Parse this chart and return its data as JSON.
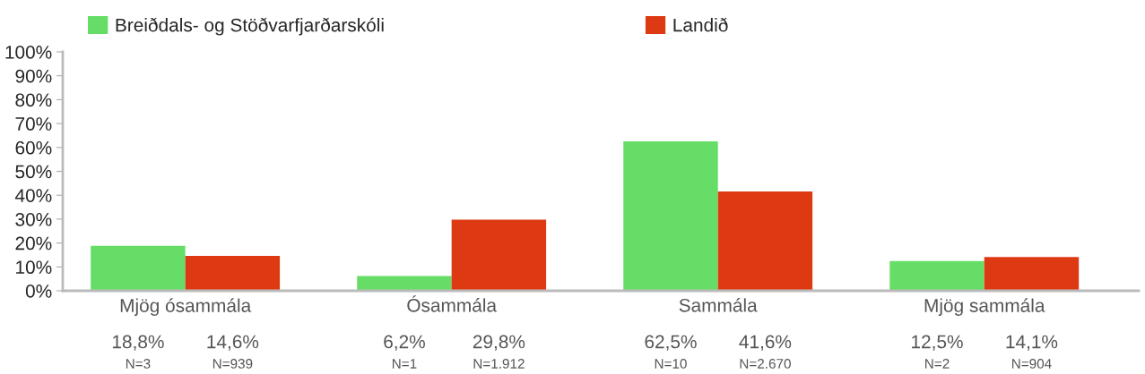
{
  "chart_data": {
    "type": "bar",
    "categories": [
      "Mjög ósammála",
      "Ósammála",
      "Sammála",
      "Mjög sammála"
    ],
    "series": [
      {
        "name": "Breiðdals- og Stöðvarfjarðarskóli",
        "color": "#66dd66",
        "values": [
          18.8,
          6.2,
          62.5,
          12.5
        ],
        "value_labels": [
          "18,8%",
          "6,2%",
          "62,5%",
          "12,5%"
        ]
      },
      {
        "name": "Landið",
        "color": "#dd3a14",
        "values": [
          14.6,
          29.8,
          41.6,
          14.1
        ],
        "value_labels": [
          "14,6%",
          "29,8%",
          "41,6%",
          "14,1%"
        ]
      }
    ],
    "ylim": [
      0,
      100
    ],
    "yticks": [
      {
        "value": 0,
        "label": "0%"
      },
      {
        "value": 10,
        "label": "10%"
      },
      {
        "value": 20,
        "label": "20%"
      },
      {
        "value": 30,
        "label": "30%"
      },
      {
        "value": 40,
        "label": "40%"
      },
      {
        "value": 50,
        "label": "50%"
      },
      {
        "value": 60,
        "label": "60%"
      },
      {
        "value": 70,
        "label": "70%"
      },
      {
        "value": 80,
        "label": "80%"
      },
      {
        "value": 90,
        "label": "90%"
      },
      {
        "value": 100,
        "label": "100%"
      }
    ],
    "annotations": [
      "N=3",
      "N=939",
      "N=1",
      "N=1.912",
      "N=10",
      "N=2.670",
      "N=2",
      "N=904"
    ],
    "legend": "top left",
    "grid": false
  }
}
